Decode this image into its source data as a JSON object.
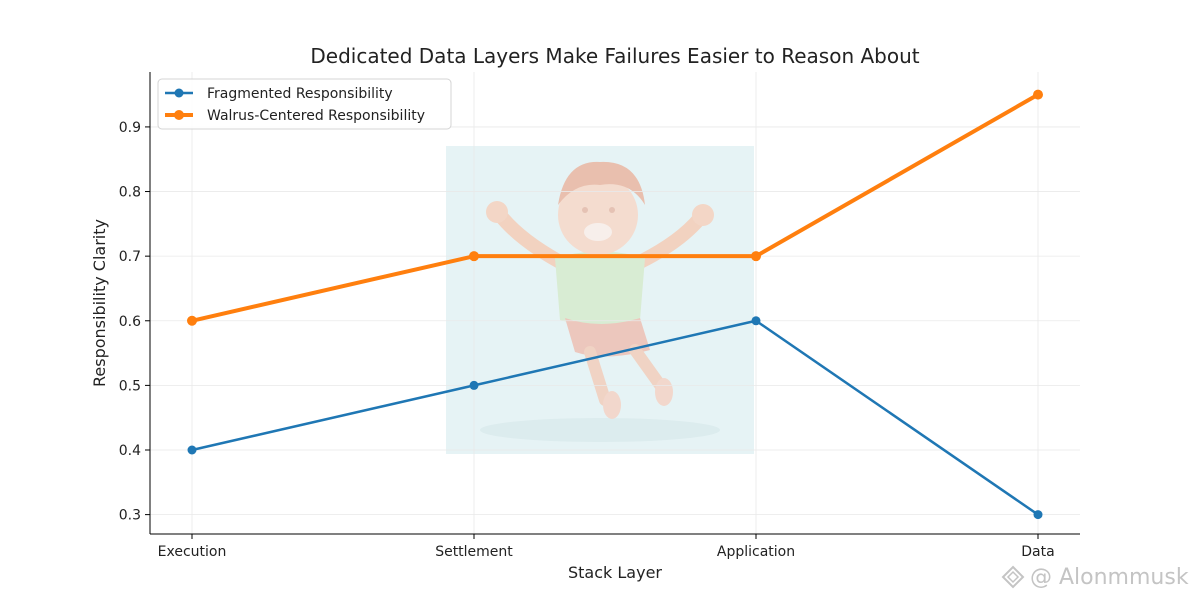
{
  "chart_data": {
    "type": "line",
    "title": "Dedicated Data Layers Make Failures Easier to Reason About",
    "xlabel": "Stack Layer",
    "ylabel": "Responsibility Clarity",
    "categories": [
      "Execution",
      "Settlement",
      "Application",
      "Data"
    ],
    "ylim": [
      0.27,
      0.985
    ],
    "yticks": [
      0.3,
      0.4,
      0.5,
      0.6,
      0.7,
      0.8,
      0.9
    ],
    "grid": true,
    "legend_position": "top-left",
    "series": [
      {
        "name": "Fragmented Responsibility",
        "values": [
          0.4,
          0.5,
          0.6,
          0.3
        ],
        "color": "#1f77b4"
      },
      {
        "name": "Walrus-Centered Responsibility",
        "values": [
          0.6,
          0.7,
          0.7,
          0.95
        ],
        "color": "#ff7f0e"
      }
    ]
  },
  "watermark": {
    "text": "@ Alonmmusk",
    "icon": "binance-logo-icon"
  },
  "background_image": {
    "description_icon": "cartoon-boy-jumping-icon"
  }
}
